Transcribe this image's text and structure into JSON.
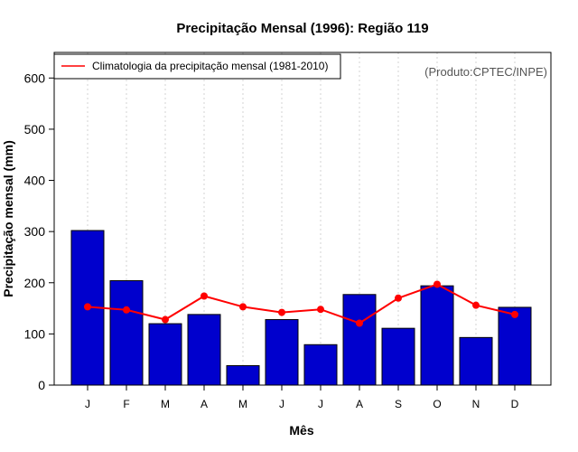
{
  "chart_data": {
    "type": "bar",
    "title": "Precipitação Mensal (1996): Região 119",
    "xlabel": "Mês",
    "ylabel": "Precipitação mensal (mm)",
    "categories": [
      "J",
      "F",
      "M",
      "A",
      "M",
      "J",
      "J",
      "A",
      "S",
      "O",
      "N",
      "D"
    ],
    "ylim": [
      0,
      650
    ],
    "yticks": [
      0,
      100,
      200,
      300,
      400,
      500,
      600
    ],
    "grid": "vertical dotted",
    "series": [
      {
        "name": "Precipitação mensal (1996)",
        "type": "bar",
        "color": "#0000cd",
        "values": [
          302,
          204,
          120,
          138,
          38,
          128,
          79,
          177,
          111,
          194,
          93,
          152
        ]
      },
      {
        "name": "Climatologia da precipitação mensal (1981-2010)",
        "type": "line",
        "color": "#ff0000",
        "values": [
          153,
          147,
          128,
          174,
          153,
          142,
          148,
          121,
          170,
          197,
          156,
          138
        ]
      }
    ],
    "legend": {
      "position": "top-left",
      "entries": [
        "Climatologia da precipitação mensal (1981-2010)"
      ]
    },
    "annotation": "(Produto:CPTEC/INPE)"
  }
}
